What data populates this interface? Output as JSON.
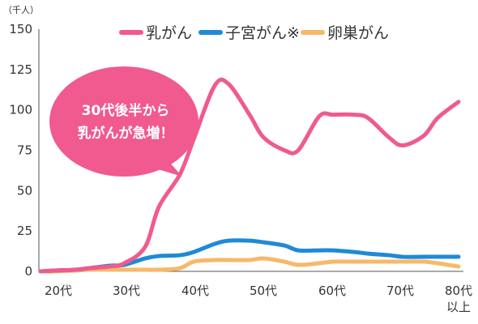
{
  "chart_data": {
    "type": "line",
    "unit_label": "（千人）",
    "y_ticks": [
      150,
      125,
      100,
      75,
      50,
      25,
      0
    ],
    "ylim": [
      0,
      150
    ],
    "x_ticks": [
      "20代",
      "30代",
      "40代",
      "50代",
      "60代",
      "70代",
      "80代\n以上"
    ],
    "x_tick_lines": [
      [
        "20代"
      ],
      [
        "30代"
      ],
      [
        "40代"
      ],
      [
        "50代"
      ],
      [
        "60代"
      ],
      [
        "70代"
      ],
      [
        "80代",
        "以上"
      ]
    ],
    "x_positions": [
      20,
      22,
      25,
      27,
      30,
      32,
      35,
      37,
      40,
      42,
      45,
      47,
      50,
      52,
      55,
      57,
      60,
      62,
      65,
      67,
      70,
      72,
      75,
      77,
      80
    ],
    "series": [
      {
        "name": "乳がん",
        "color": "#f05a8f",
        "values": [
          0,
          0.5,
          1,
          2,
          3,
          5,
          15,
          40,
          60,
          82,
          115,
          116,
          97,
          83,
          75,
          75,
          96,
          97,
          97,
          95,
          83,
          78,
          84,
          95,
          105
        ]
      },
      {
        "name": "子宮がん※",
        "color": "#1f8ad6",
        "values": [
          0,
          0.5,
          1,
          2,
          3.5,
          4,
          8,
          9.5,
          10,
          12,
          17,
          19,
          19,
          18,
          16,
          13,
          13,
          13,
          12,
          11,
          10,
          9,
          9,
          9,
          9
        ]
      },
      {
        "name": "卵巣がん",
        "color": "#f7b86a",
        "values": [
          0,
          0,
          0.5,
          1,
          1,
          1,
          1,
          1,
          2,
          6,
          7,
          7,
          7,
          8,
          6,
          4,
          5,
          6,
          6,
          6,
          6,
          6,
          6,
          5,
          3
        ]
      }
    ],
    "annotation": [
      "30代後半から",
      "乳がんが急増！"
    ],
    "annotation_color": "#f05a8f",
    "legend_position": "top",
    "grid": false
  }
}
